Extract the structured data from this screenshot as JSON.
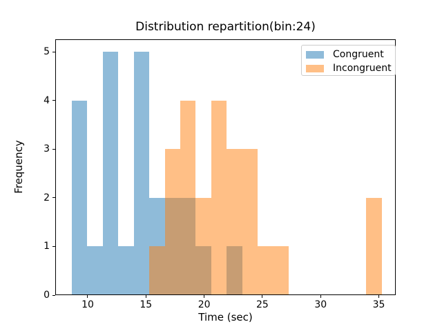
{
  "figure": {
    "background": "#ffffff"
  },
  "chart_data": {
    "type": "histogram",
    "title": "Distribution repartition(bin:24)",
    "xlabel": "Time (sec)",
    "ylabel": "Frequency",
    "bin_edges": [
      8.63,
      9.96125,
      11.2925,
      12.62375,
      13.955,
      15.28625,
      16.6175,
      17.94875,
      19.28,
      20.61125,
      21.9425,
      23.27375,
      24.605,
      25.93625,
      27.2675,
      28.59875,
      29.93,
      31.26125,
      32.5925,
      33.92375,
      35.255
    ],
    "series": [
      {
        "name": "Congruent",
        "color": "#1f77b4",
        "alpha": 0.5,
        "counts": [
          4,
          1,
          5,
          1,
          5,
          2,
          2,
          2,
          1,
          0,
          1,
          0,
          0,
          0,
          0,
          0,
          0,
          0,
          0,
          0
        ]
      },
      {
        "name": "Incongruent",
        "color": "#ff7f0e",
        "alpha": 0.5,
        "counts": [
          0,
          0,
          0,
          0,
          0,
          1,
          3,
          4,
          2,
          4,
          3,
          3,
          1,
          1,
          0,
          0,
          0,
          0,
          0,
          2
        ]
      }
    ],
    "xticks": [
      10,
      15,
      20,
      25,
      30,
      35
    ],
    "yticks": [
      0,
      1,
      2,
      3,
      4,
      5
    ],
    "xlim": [
      7.213,
      36.45
    ],
    "ylim": [
      0,
      5.258
    ],
    "grid": false,
    "legend": {
      "position": "upper right",
      "entries": [
        "Congruent",
        "Incongruent"
      ]
    }
  }
}
